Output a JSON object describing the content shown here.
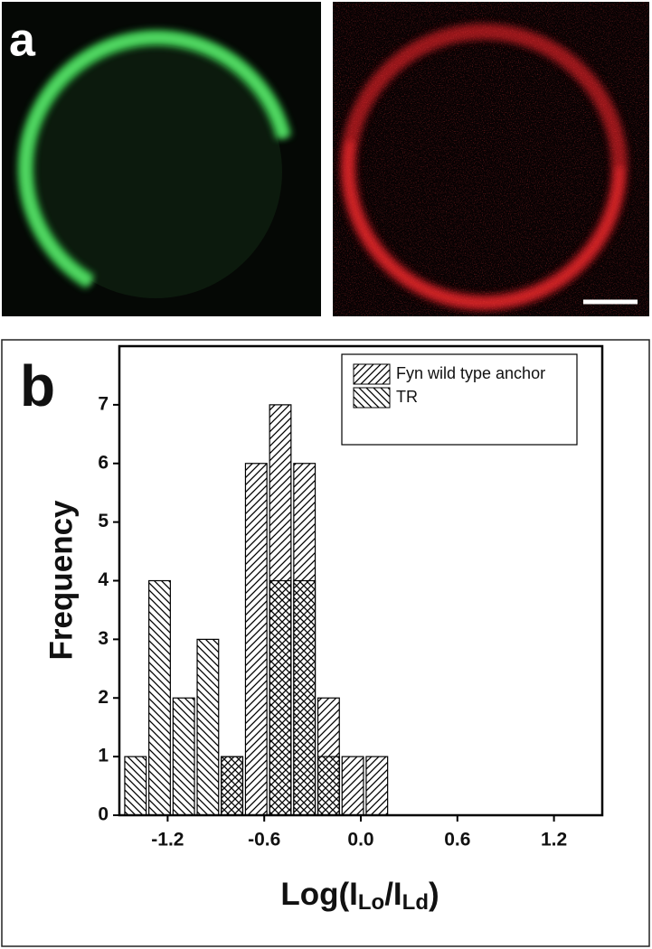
{
  "chart_data": {
    "type": "histogram",
    "panel_labels": [
      "a",
      "b"
    ],
    "ylabel": "Frequency",
    "xlabel": [
      {
        "text": "Log(I"
      },
      {
        "text": "Lo",
        "sub": true
      },
      {
        "text": "/I"
      },
      {
        "text": "Ld",
        "sub": true
      },
      {
        "text": ")"
      }
    ],
    "bins": [
      -1.475,
      -1.325,
      -1.175,
      -1.025,
      -0.875,
      -0.725,
      -0.575,
      -0.425,
      -0.275,
      -0.125,
      0.025,
      0.175
    ],
    "series": [
      {
        "name": "Fyn wild type anchor",
        "color": "#000000",
        "hatch": "/",
        "values": [
          0,
          0,
          0,
          0,
          1,
          6,
          7,
          6,
          2,
          1,
          1
        ]
      },
      {
        "name": "TR",
        "color": "#000000",
        "hatch": "\\",
        "values": [
          1,
          4,
          2,
          3,
          1,
          0,
          4,
          4,
          1,
          0,
          0
        ]
      }
    ],
    "xlim": [
      -1.5,
      1.5
    ],
    "xticks": [
      -1.2,
      -0.6,
      {
        "value": 0,
        "label": "0.0"
      },
      0.6,
      1.2
    ],
    "ylim": [
      0,
      8
    ],
    "yticks": [
      0,
      1,
      2,
      3,
      4,
      5,
      6,
      7
    ],
    "legend": "upper right"
  }
}
